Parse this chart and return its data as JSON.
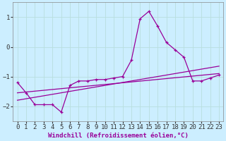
{
  "xlabel": "Windchill (Refroidissement éolien,°C)",
  "background_color": "#cceeff",
  "line_color": "#990099",
  "grid_color": "#aadddd",
  "xlim": [
    -0.5,
    23.5
  ],
  "ylim": [
    -2.5,
    1.5
  ],
  "xticks": [
    0,
    1,
    2,
    3,
    4,
    5,
    6,
    7,
    8,
    9,
    10,
    11,
    12,
    13,
    14,
    15,
    16,
    17,
    18,
    19,
    20,
    21,
    22,
    23
  ],
  "yticks": [
    -2,
    -1,
    0,
    1
  ],
  "main_series": [
    [
      0,
      -1.2
    ],
    [
      1,
      -1.55
    ],
    [
      2,
      -1.95
    ],
    [
      3,
      -1.95
    ],
    [
      4,
      -1.95
    ],
    [
      5,
      -2.2
    ],
    [
      6,
      -1.3
    ],
    [
      7,
      -1.15
    ],
    [
      8,
      -1.15
    ],
    [
      9,
      -1.1
    ],
    [
      10,
      -1.1
    ],
    [
      11,
      -1.05
    ],
    [
      12,
      -1.0
    ],
    [
      13,
      -0.45
    ],
    [
      14,
      0.95
    ],
    [
      15,
      1.2
    ],
    [
      16,
      0.7
    ],
    [
      17,
      0.15
    ],
    [
      18,
      -0.1
    ],
    [
      19,
      -0.35
    ],
    [
      20,
      -1.15
    ],
    [
      21,
      -1.15
    ],
    [
      22,
      -1.05
    ],
    [
      23,
      -0.95
    ]
  ],
  "trend1_x": [
    0,
    23
  ],
  "trend1_y": [
    -1.8,
    -0.65
  ],
  "trend2_x": [
    0,
    23
  ],
  "trend2_y": [
    -1.55,
    -0.9
  ],
  "xlabel_fontsize": 6.5,
  "tick_fontsize": 6.5,
  "marker_size": 3.5,
  "line_width": 0.9
}
